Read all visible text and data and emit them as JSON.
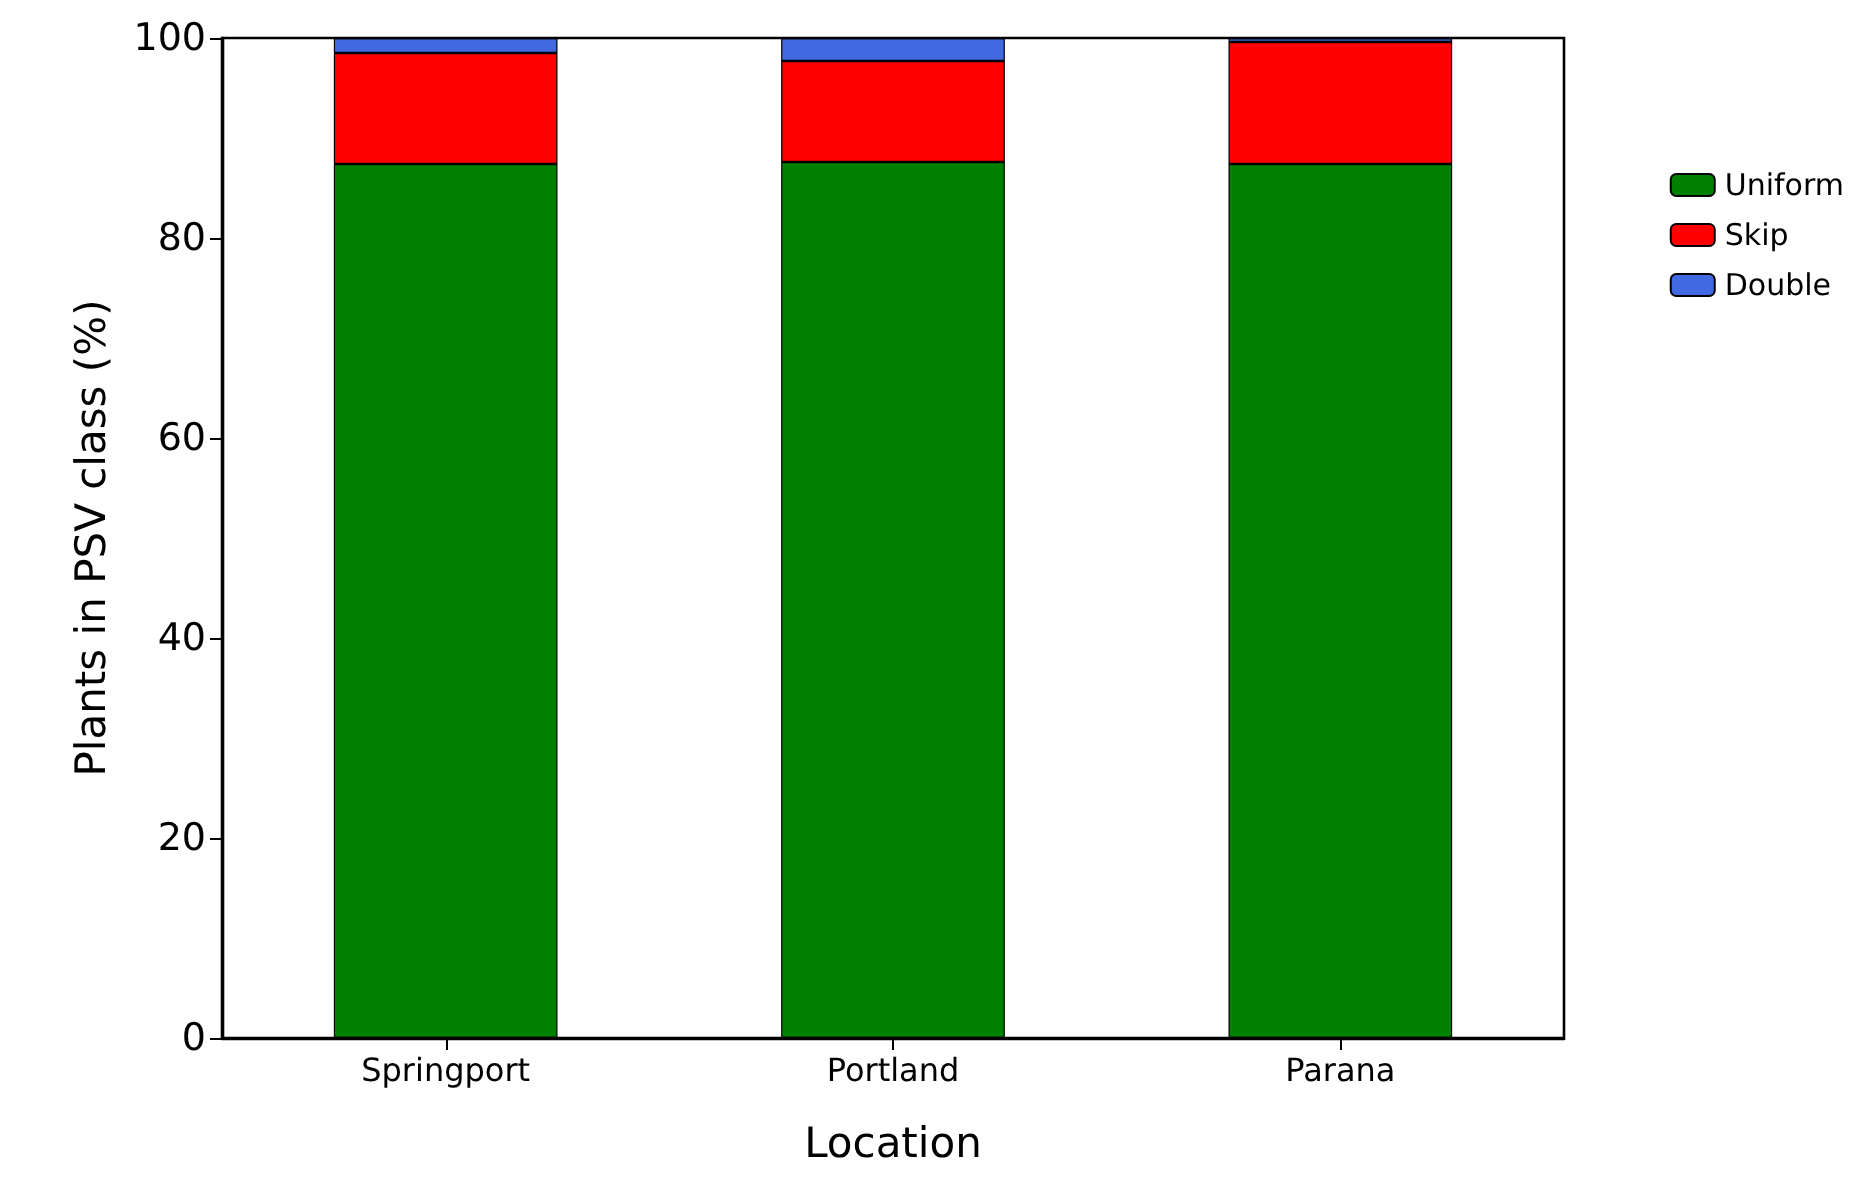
{
  "chart_data": {
    "type": "bar",
    "stacked": true,
    "xlabel": "Location",
    "ylabel": "Plants in PSV class (%)",
    "categories": [
      "Springport",
      "Portland",
      "Parana"
    ],
    "series": [
      {
        "name": "Uniform",
        "color": "#008000",
        "values": [
          87.4,
          87.6,
          87.4
        ]
      },
      {
        "name": "Skip",
        "color": "#ff0000",
        "values": [
          11.1,
          10.1,
          12.2
        ]
      },
      {
        "name": "Double",
        "color": "#4169e1",
        "values": [
          1.5,
          2.3,
          0.4
        ]
      }
    ],
    "ylim": [
      0,
      100
    ],
    "yticks": [
      0,
      20,
      40,
      60,
      80,
      100
    ],
    "grid": false,
    "legend": "top right"
  }
}
